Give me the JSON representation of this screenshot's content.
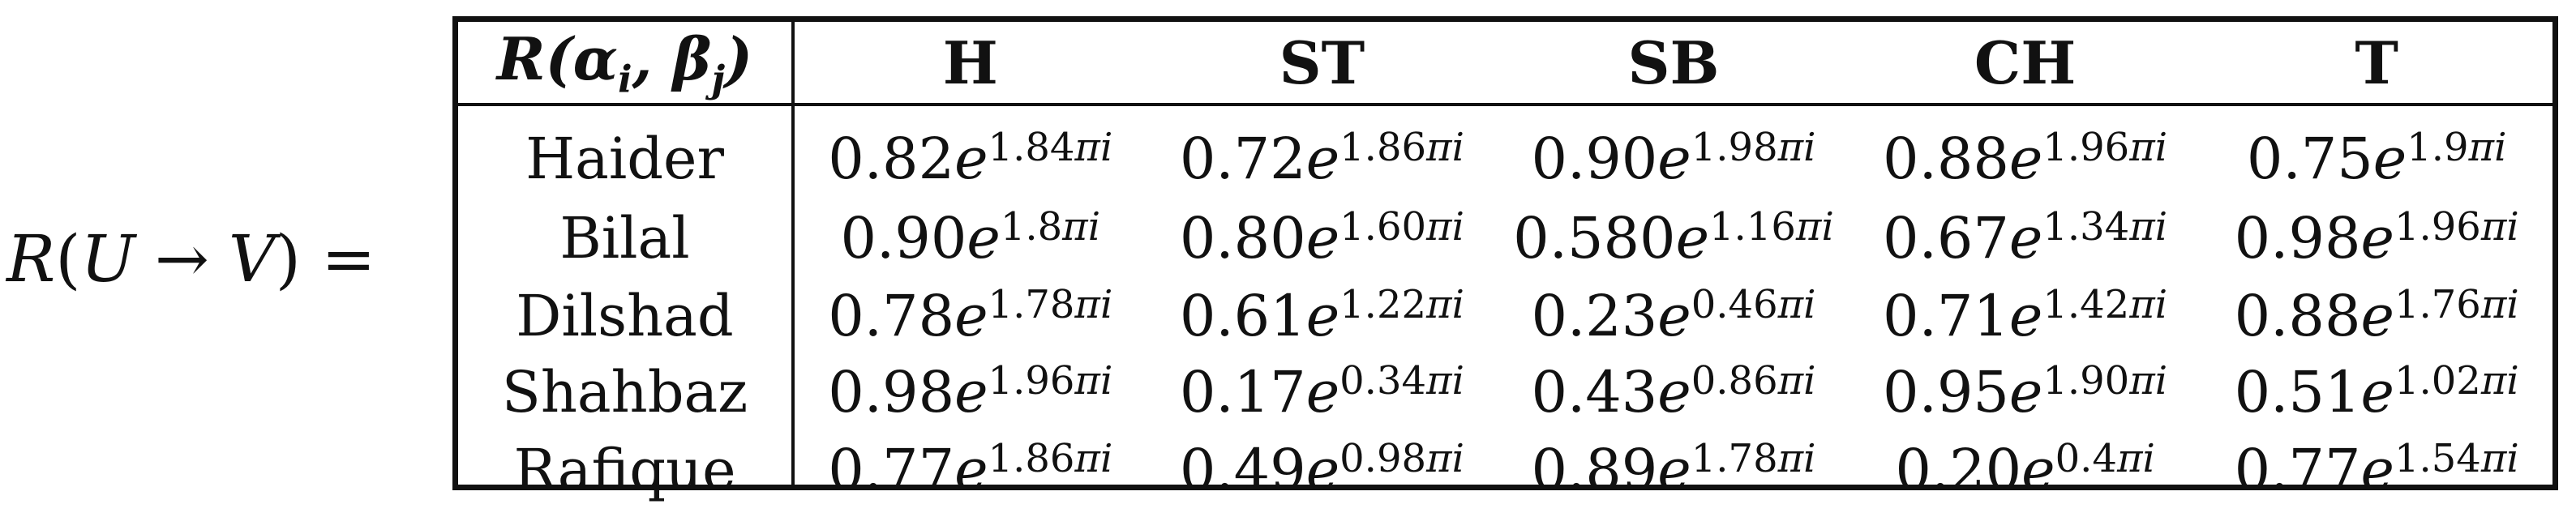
{
  "equation": {
    "lhs": "R(U → V) ="
  },
  "table": {
    "corner_label": "R(αi, βj)",
    "columns": [
      "H",
      "ST",
      "SB",
      "CH",
      "T"
    ],
    "rows": [
      {
        "label": "Haider",
        "cells": [
          {
            "coef": "0.82",
            "exp": "1.84"
          },
          {
            "coef": "0.72",
            "exp": "1.86"
          },
          {
            "coef": "0.90",
            "exp": "1.98"
          },
          {
            "coef": "0.88",
            "exp": "1.96"
          },
          {
            "coef": "0.75",
            "exp": "1.9"
          }
        ]
      },
      {
        "label": "Bilal",
        "cells": [
          {
            "coef": "0.90",
            "exp": "1.8"
          },
          {
            "coef": "0.80",
            "exp": "1.60"
          },
          {
            "coef": "0.580",
            "exp": "1.16"
          },
          {
            "coef": "0.67",
            "exp": "1.34"
          },
          {
            "coef": "0.98",
            "exp": "1.96"
          }
        ]
      },
      {
        "label": "Dilshad",
        "cells": [
          {
            "coef": "0.78",
            "exp": "1.78"
          },
          {
            "coef": "0.61",
            "exp": "1.22"
          },
          {
            "coef": "0.23",
            "exp": "0.46"
          },
          {
            "coef": "0.71",
            "exp": "1.42"
          },
          {
            "coef": "0.88",
            "exp": "1.76"
          }
        ]
      },
      {
        "label": "Shahbaz",
        "cells": [
          {
            "coef": "0.98",
            "exp": "1.96"
          },
          {
            "coef": "0.17",
            "exp": "0.34"
          },
          {
            "coef": "0.43",
            "exp": "0.86"
          },
          {
            "coef": "0.95",
            "exp": "1.90"
          },
          {
            "coef": "0.51",
            "exp": "1.02"
          }
        ]
      },
      {
        "label": "Rafique",
        "cells": [
          {
            "coef": "0.77",
            "exp": "1.86"
          },
          {
            "coef": "0.49",
            "exp": "0.98"
          },
          {
            "coef": "0.89",
            "exp": "1.78"
          },
          {
            "coef": "0.20",
            "exp": "0.4"
          },
          {
            "coef": "0.77",
            "exp": "1.54"
          }
        ]
      }
    ]
  }
}
